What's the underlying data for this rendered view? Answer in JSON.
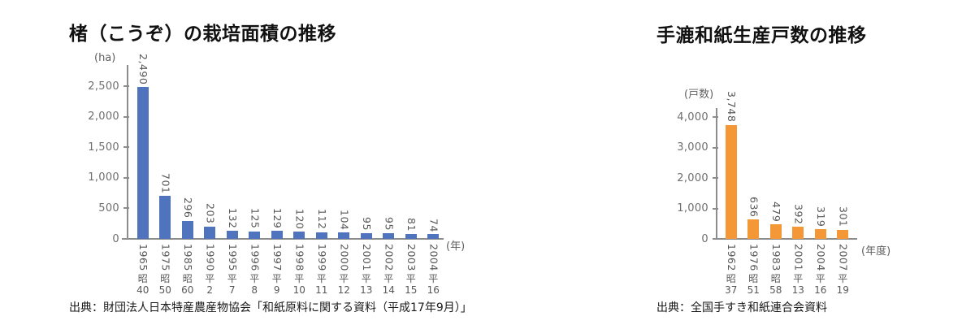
{
  "chart_data": [
    {
      "type": "bar",
      "title": "楮（こうぞ）の栽培面積の推移",
      "unit_label": "(ha)",
      "axis_end_label": "(年)",
      "source": "出典：財団法人日本特産農産物協会「和紙原料に関する資料（平成17年9月）」",
      "bar_color": "#4f74bd",
      "ylim": [
        0,
        2500
      ],
      "grid": false,
      "y_tick_labels": [
        "0",
        "500",
        "1,000",
        "1,500",
        "2,000",
        "2,500"
      ],
      "y_tick_values": [
        0,
        500,
        1000,
        1500,
        2000,
        2500
      ],
      "bars": [
        {
          "year": "1965",
          "era": "昭40",
          "value": 2490,
          "label": "2,490"
        },
        {
          "year": "1975",
          "era": "昭50",
          "value": 701,
          "label": "701"
        },
        {
          "year": "1985",
          "era": "昭60",
          "value": 296,
          "label": "296"
        },
        {
          "year": "1990",
          "era": "平2",
          "value": 203,
          "label": "203"
        },
        {
          "year": "1995",
          "era": "平7",
          "value": 132,
          "label": "132"
        },
        {
          "year": "1996",
          "era": "平8",
          "value": 125,
          "label": "125"
        },
        {
          "year": "1997",
          "era": "平9",
          "value": 129,
          "label": "129"
        },
        {
          "year": "1998",
          "era": "平10",
          "value": 120,
          "label": "120"
        },
        {
          "year": "1999",
          "era": "平11",
          "value": 112,
          "label": "112"
        },
        {
          "year": "2000",
          "era": "平12",
          "value": 104,
          "label": "104"
        },
        {
          "year": "2001",
          "era": "平13",
          "value": 95,
          "label": "95"
        },
        {
          "year": "2002",
          "era": "平14",
          "value": 95,
          "label": "95"
        },
        {
          "year": "2003",
          "era": "平15",
          "value": 81,
          "label": "81"
        },
        {
          "year": "2004",
          "era": "平16",
          "value": 74,
          "label": "74"
        }
      ]
    },
    {
      "type": "bar",
      "title": "手漉和紙生産戸数の推移",
      "unit_label": "(戸数)",
      "axis_end_label": "(年度)",
      "source": "出典：全国手すき和紙連合会資料",
      "bar_color": "#f49737",
      "ylim": [
        0,
        4000
      ],
      "grid": false,
      "y_tick_labels": [
        "0",
        "1,000",
        "2,000",
        "3,000",
        "4,000"
      ],
      "y_tick_values": [
        0,
        1000,
        2000,
        3000,
        4000
      ],
      "bars": [
        {
          "year": "1962",
          "era": "昭37",
          "value": 3748,
          "label": "3,748"
        },
        {
          "year": "1976",
          "era": "昭51",
          "value": 636,
          "label": "636"
        },
        {
          "year": "1983",
          "era": "昭58",
          "value": 479,
          "label": "479"
        },
        {
          "year": "2001",
          "era": "平13",
          "value": 392,
          "label": "392"
        },
        {
          "year": "2004",
          "era": "平16",
          "value": 319,
          "label": "319"
        },
        {
          "year": "2007",
          "era": "平19",
          "value": 301,
          "label": "301"
        }
      ]
    }
  ]
}
